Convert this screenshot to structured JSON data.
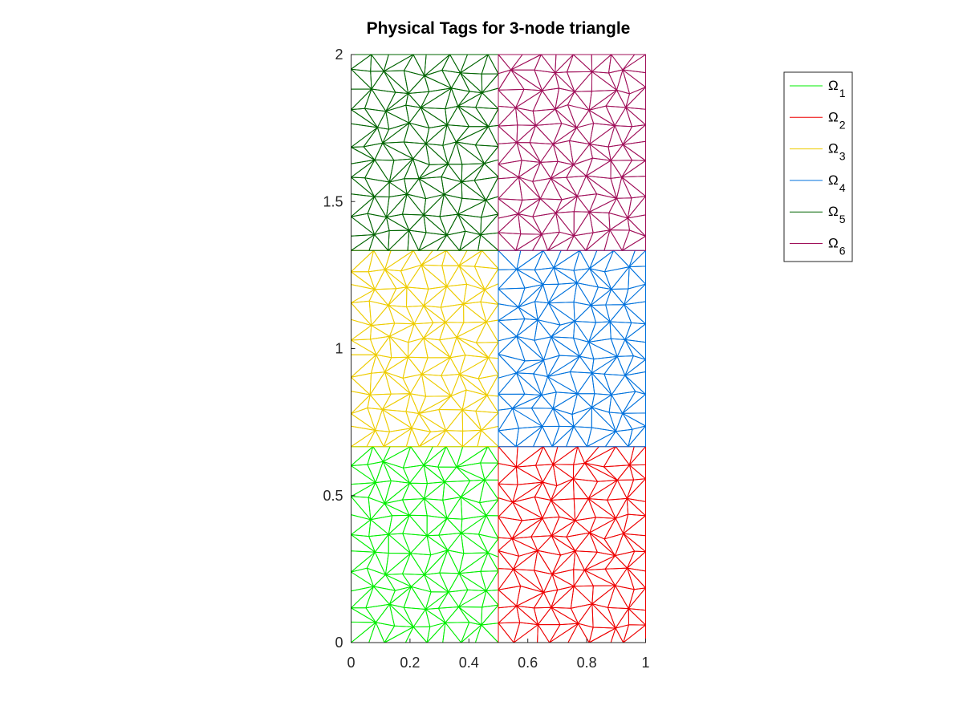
{
  "chart_data": {
    "type": "mesh",
    "title": "Physical Tags for 3-node triangle",
    "xlabel": "",
    "ylabel": "",
    "xlim": [
      0,
      1
    ],
    "ylim": [
      0,
      2
    ],
    "x_ticks": [
      0,
      0.2,
      0.4,
      0.6,
      0.8,
      1
    ],
    "x_tick_labels": [
      "0",
      "0.2",
      "0.4",
      "0.6",
      "0.8",
      "1"
    ],
    "y_ticks": [
      0,
      0.5,
      1,
      1.5,
      2
    ],
    "y_tick_labels": [
      "0",
      "0.5",
      "1",
      "1.5",
      "2"
    ],
    "aspect": "equal",
    "grid": false,
    "legend_position": "top-right",
    "element_type": "3-node triangle",
    "regions": [
      {
        "name": "Ω",
        "subscript": "1",
        "color": "#00ee00",
        "x": [
          0,
          0.5
        ],
        "y": [
          0,
          0.6667
        ]
      },
      {
        "name": "Ω",
        "subscript": "2",
        "color": "#ee0000",
        "x": [
          0.5,
          1
        ],
        "y": [
          0,
          0.6667
        ]
      },
      {
        "name": "Ω",
        "subscript": "3",
        "color": "#eecc00",
        "x": [
          0,
          0.5
        ],
        "y": [
          0.6667,
          1.3333
        ]
      },
      {
        "name": "Ω",
        "subscript": "4",
        "color": "#0072dd",
        "x": [
          0.5,
          1
        ],
        "y": [
          0.6667,
          1.3333
        ]
      },
      {
        "name": "Ω",
        "subscript": "5",
        "color": "#006400",
        "x": [
          0,
          0.5
        ],
        "y": [
          1.3333,
          2
        ]
      },
      {
        "name": "Ω",
        "subscript": "6",
        "color": "#a0105a",
        "x": [
          0.5,
          1
        ],
        "y": [
          1.3333,
          2
        ]
      }
    ]
  }
}
